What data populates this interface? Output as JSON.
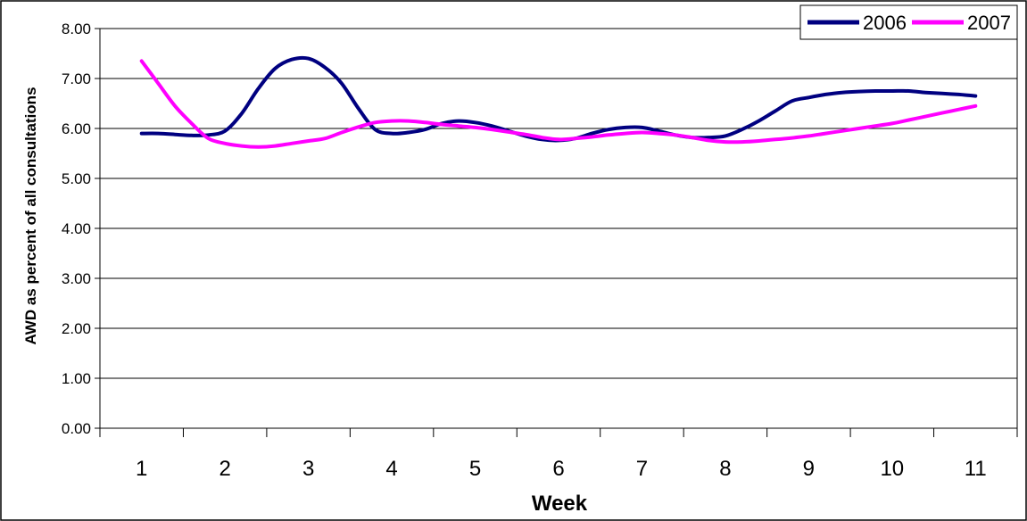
{
  "chart_data": {
    "type": "line",
    "title": "",
    "xlabel": "Week",
    "ylabel": "AWD as percent of all consultations",
    "categories": [
      "1",
      "2",
      "3",
      "4",
      "5",
      "6",
      "7",
      "8",
      "9",
      "10",
      "11"
    ],
    "ylim": [
      0,
      8
    ],
    "yticks": [
      "0.00",
      "1.00",
      "2.00",
      "3.00",
      "4.00",
      "5.00",
      "6.00",
      "7.00",
      "8.00"
    ],
    "grid": true,
    "legend_position": "top-right",
    "series": [
      {
        "name": "2006",
        "color": "#000080",
        "x": [
          1,
          1.2,
          1.4,
          1.6,
          1.8,
          2,
          2.2,
          2.4,
          2.6,
          2.8,
          3,
          3.2,
          3.4,
          3.6,
          3.8,
          4,
          4.2,
          4.4,
          4.6,
          4.8,
          5,
          5.2,
          5.4,
          5.6,
          5.8,
          6,
          6.2,
          6.4,
          6.6,
          6.8,
          7,
          7.2,
          7.4,
          7.6,
          7.8,
          8,
          8.2,
          8.4,
          8.6,
          8.8,
          9,
          9.2,
          9.4,
          9.6,
          9.8,
          10,
          10.2,
          10.4,
          10.6,
          10.8,
          11
        ],
        "values": [
          5.9,
          5.9,
          5.88,
          5.86,
          5.87,
          5.95,
          6.3,
          6.8,
          7.2,
          7.38,
          7.4,
          7.22,
          6.9,
          6.4,
          5.98,
          5.9,
          5.92,
          5.98,
          6.1,
          6.15,
          6.12,
          6.05,
          5.95,
          5.85,
          5.78,
          5.76,
          5.8,
          5.9,
          5.98,
          6.02,
          6.02,
          5.95,
          5.87,
          5.82,
          5.82,
          5.85,
          5.98,
          6.15,
          6.35,
          6.55,
          6.62,
          6.68,
          6.72,
          6.74,
          6.75,
          6.75,
          6.75,
          6.72,
          6.7,
          6.68,
          6.65
        ]
      },
      {
        "name": "2007",
        "color": "#FF00FF",
        "x": [
          1,
          1.2,
          1.4,
          1.6,
          1.8,
          2,
          2.2,
          2.4,
          2.6,
          2.8,
          3,
          3.2,
          3.4,
          3.6,
          3.8,
          4,
          4.2,
          4.4,
          4.6,
          4.8,
          5,
          5.2,
          5.4,
          5.6,
          5.8,
          6,
          6.2,
          6.4,
          6.6,
          6.8,
          7,
          7.2,
          7.4,
          7.6,
          7.8,
          8,
          8.2,
          8.4,
          8.6,
          8.8,
          9,
          9.2,
          9.4,
          9.6,
          9.8,
          10,
          10.2,
          10.4,
          10.6,
          10.8,
          11
        ],
        "values": [
          7.35,
          6.9,
          6.45,
          6.1,
          5.8,
          5.7,
          5.65,
          5.63,
          5.65,
          5.7,
          5.75,
          5.8,
          5.92,
          6.03,
          6.12,
          6.15,
          6.15,
          6.12,
          6.08,
          6.05,
          6.02,
          5.98,
          5.93,
          5.88,
          5.82,
          5.78,
          5.8,
          5.83,
          5.87,
          5.9,
          5.92,
          5.9,
          5.87,
          5.82,
          5.76,
          5.73,
          5.73,
          5.75,
          5.78,
          5.81,
          5.85,
          5.9,
          5.95,
          6.0,
          6.05,
          6.1,
          6.17,
          6.24,
          6.31,
          6.38,
          6.45
        ]
      }
    ]
  }
}
